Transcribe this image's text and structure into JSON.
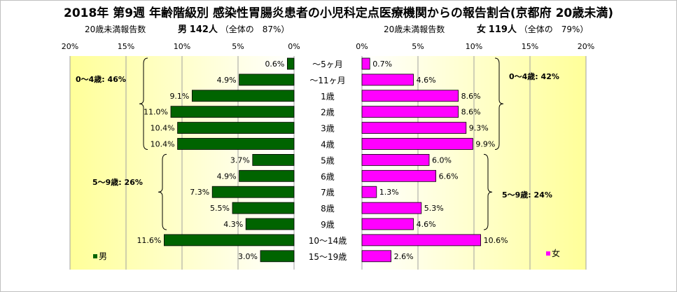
{
  "title": "2018年 第9週 年齢階級別 感染性胃腸炎患者の小児科定点医療機関からの報告割合(京都府 20歳未満)",
  "male": {
    "subtitle_label": "20歳未満報告数",
    "sex": "男",
    "count": "142人",
    "share": "（全体の　87%）"
  },
  "female": {
    "subtitle_label": "20歳未満報告数",
    "sex": "女",
    "count": "119人",
    "share": "（全体の　79%）"
  },
  "chart_data": {
    "type": "bar",
    "orientation": "horizontal-population-pyramid",
    "categories": [
      "～5ヶ月",
      "～11ヶ月",
      "1歳",
      "2歳",
      "3歳",
      "4歳",
      "5歳",
      "6歳",
      "7歳",
      "8歳",
      "9歳",
      "10～14歳",
      "15～19歳"
    ],
    "series": [
      {
        "name": "男",
        "color": "#006400",
        "values": [
          0.6,
          4.9,
          9.1,
          11.0,
          10.4,
          10.4,
          3.7,
          4.9,
          7.3,
          5.5,
          4.3,
          11.6,
          3.0
        ],
        "labels": [
          "0.6%",
          "4.9%",
          "9.1%",
          "11.0%",
          "10.4%",
          "10.4%",
          "3.7%",
          "4.9%",
          "7.3%",
          "5.5%",
          "4.3%",
          "11.6%",
          "3.0%"
        ]
      },
      {
        "name": "女",
        "color": "#ff00ff",
        "values": [
          0.7,
          4.6,
          8.6,
          8.6,
          9.3,
          9.9,
          6.0,
          6.6,
          1.3,
          5.3,
          4.6,
          10.6,
          2.6
        ],
        "labels": [
          "0.7%",
          "4.6%",
          "8.6%",
          "8.6%",
          "9.3%",
          "9.9%",
          "6.0%",
          "6.6%",
          "1.3%",
          "5.3%",
          "4.6%",
          "10.6%",
          "2.6%"
        ]
      }
    ],
    "male_ticks": [
      "20%",
      "15%",
      "10%",
      "5%",
      "0%"
    ],
    "female_ticks": [
      "0%",
      "5%",
      "10%",
      "15%",
      "20%"
    ],
    "xlim": [
      0,
      20
    ],
    "grid": true,
    "annotations": {
      "male_0_4": "0～4歳: 46%",
      "male_5_9": "5～9歳: 26%",
      "female_0_4": "0～4歳: 42%",
      "female_5_9": "5～9歳: 24%"
    },
    "legend": {
      "male": "男",
      "female": "女"
    }
  }
}
